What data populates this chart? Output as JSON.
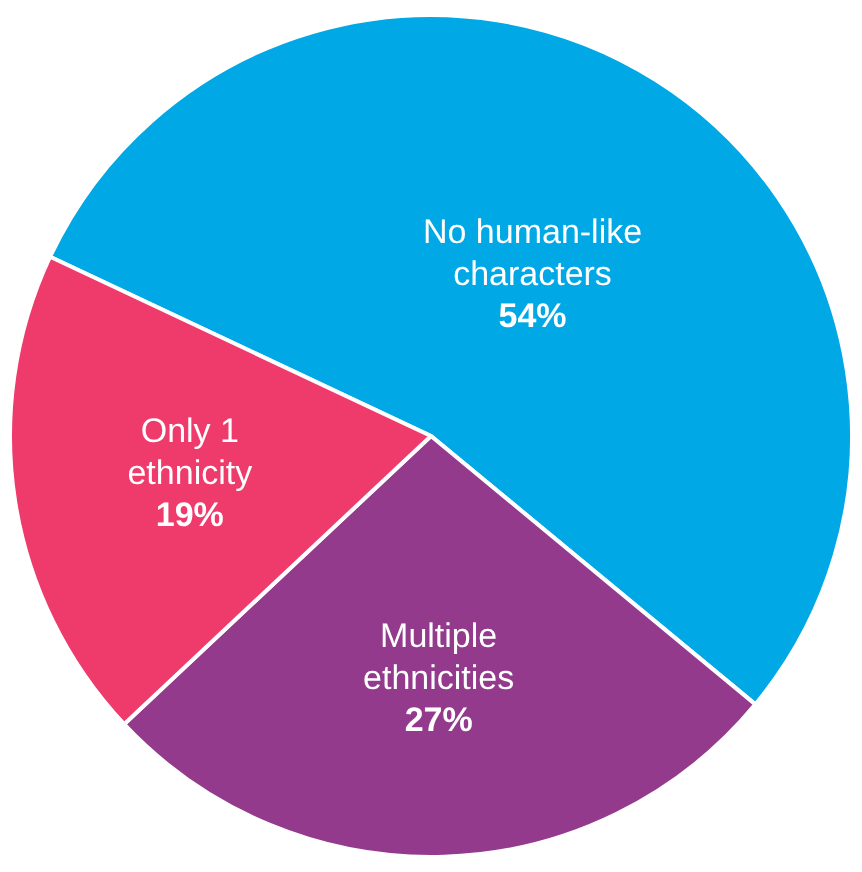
{
  "chart_data": {
    "type": "pie",
    "categories": [
      "No human-like characters",
      "Multiple ethnicities",
      "Only 1 ethnicity"
    ],
    "values": [
      54,
      27,
      19
    ],
    "colors": [
      "#00a8e6",
      "#943a8c",
      "#ef3a6c"
    ],
    "value_labels": [
      "54%",
      "27%",
      "19%"
    ],
    "legend": false
  }
}
